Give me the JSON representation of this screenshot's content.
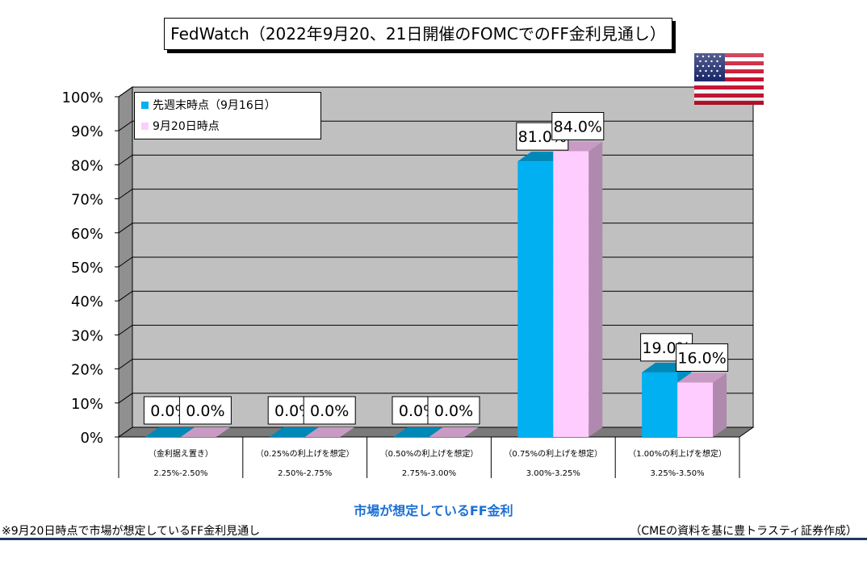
{
  "title": "FedWatch（2022年9月20、21日開催のFOMCでのFF金利見通し）",
  "flag_icon": "us-flag-icon",
  "colors": {
    "series1": "#00b0f0",
    "series1_dark": "#0088b8",
    "series1_side": "#0090c4",
    "series2": "#ffccff",
    "series2_dark": "#c99bc4",
    "series2_side": "#b08aae",
    "plot_bg": "#c0c0c0",
    "plot_side": "#909090",
    "floor": "#7a7a7a",
    "accent": "#1a6fd4",
    "rule": "#1f3864"
  },
  "chart_data": {
    "type": "bar",
    "categories": [
      {
        "line1": "（金利据え置き）",
        "line2": "2.25%-2.50%"
      },
      {
        "line1": "（0.25%の利上げを想定）",
        "line2": "2.50%-2.75%"
      },
      {
        "line1": "（0.50%の利上げを想定）",
        "line2": "2.75%-3.00%"
      },
      {
        "line1": "（0.75%の利上げを想定）",
        "line2": "3.00%-3.25%"
      },
      {
        "line1": "（1.00%の利上げを想定）",
        "line2": "3.25%-3.50%"
      }
    ],
    "series": [
      {
        "name": "先週末時点（9月16日）",
        "values": [
          0.0,
          0.0,
          0.0,
          81.0,
          19.0
        ],
        "labels": [
          "0.0%",
          "0.0%",
          "0.0%",
          "81.0%",
          "19.0%"
        ]
      },
      {
        "name": "9月20日時点",
        "values": [
          0.0,
          0.0,
          0.0,
          84.0,
          16.0
        ],
        "labels": [
          "0.0%",
          "0.0%",
          "0.0%",
          "84.0%",
          "16.0%"
        ]
      }
    ],
    "ylim": [
      0,
      100
    ],
    "yticks": [
      "0%",
      "10%",
      "20%",
      "30%",
      "40%",
      "50%",
      "60%",
      "70%",
      "80%",
      "90%",
      "100%"
    ],
    "xlabel": "市場が想定しているFF金利",
    "ylabel": "",
    "grid": true,
    "legend_position": "top-left"
  },
  "footnote": "※9月20日時点で市場が想定しているFF金利見通し",
  "source": "（CMEの資料を基に豊トラスティ証券作成）"
}
